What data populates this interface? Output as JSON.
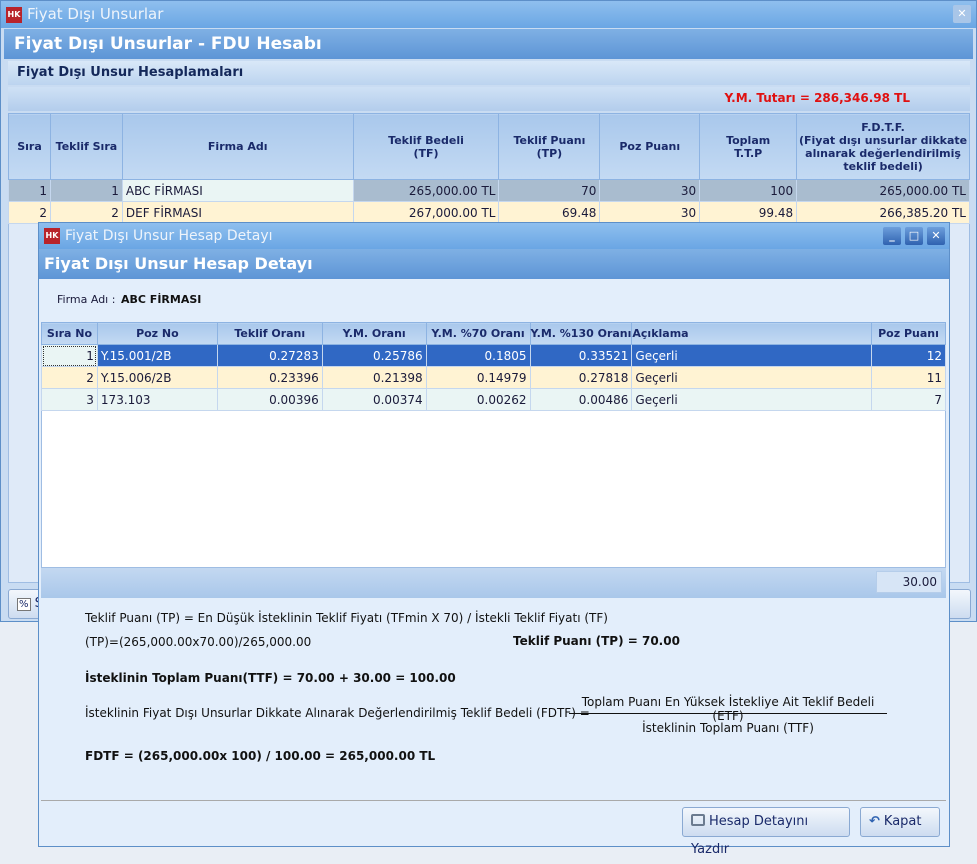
{
  "main_window": {
    "title": "Fiyat Dışı Unsurlar",
    "logo": "HK",
    "header": "Fiyat Dışı Unsurlar - FDU Hesabı",
    "panel_title": "Fiyat Dışı Unsur Hesaplamaları",
    "ym_tutari": "Y.M. Tutarı = 286,346.98 TL",
    "columns": [
      "Sıra",
      "Teklif Sıra",
      "Firma Adı",
      "Teklif Bedeli\n(TF)",
      "Teklif Puanı\n(TP)",
      "Poz Puanı",
      "Toplam\nT.T.P",
      "F.D.T.F.\n(Fiyat dışı unsurlar dikkate alınarak değerlendirilmiş teklif bedeli)"
    ],
    "rows": [
      [
        "1",
        "1",
        "ABC FİRMASI",
        "265,000.00 TL",
        "70",
        "30",
        "100",
        "265,000.00 TL"
      ],
      [
        "2",
        "2",
        "DEF FİRMASI",
        "267,000.00 TL",
        "69.48",
        "30",
        "99.48",
        "266,385.20 TL"
      ]
    ],
    "bottom_button_label": "S"
  },
  "detail_dialog": {
    "title": "Fiyat Dışı Unsur Hesap Detayı",
    "logo": "HK",
    "header": "Fiyat Dışı Unsur Hesap Detayı",
    "firma_label": "Firma Adı :",
    "firma_value": "ABC FİRMASI",
    "columns": [
      "Sıra No",
      "Poz No",
      "Teklif Oranı",
      "Y.M. Oranı",
      "Y.M. %70 Oranı",
      "Y.M. %130 Oranı",
      "Açıklama",
      "Poz Puanı"
    ],
    "rows": [
      [
        "1",
        "Y.15.001/2B",
        "0.27283",
        "0.25786",
        "0.1805",
        "0.33521",
        "Geçerli",
        "12"
      ],
      [
        "2",
        "Y.15.006/2B",
        "0.23396",
        "0.21398",
        "0.14979",
        "0.27818",
        "Geçerli",
        "11"
      ],
      [
        "3",
        "173.103",
        "0.00396",
        "0.00374",
        "0.00262",
        "0.00486",
        "Geçerli",
        "7"
      ]
    ],
    "total_poz_puani": "30.00",
    "formulas": {
      "tp_def": "Teklif Puanı (TP) = En Düşük İsteklinin Teklif Fiyatı (TFmin X  70) / İstekli Teklif Fiyatı (TF)",
      "tp_calc": "(TP)=(265,000.00x70.00)/265,000.00",
      "tp_result": "Teklif Puanı (TP) = 70.00",
      "ttf": "İsteklinin Toplam Puanı(TTF) = 70.00 + 30.00 = 100.00",
      "fdtf_def": "İsteklinin Fiyat Dışı Unsurlar Dikkate Alınarak Değerlendirilmiş Teklif Bedeli (FDTF) =",
      "fdtf_numerator": "Toplam Puanı En Yüksek İstekliye Ait Teklif Bedeli (ETF)",
      "fdtf_denominator": "İsteklinin Toplam Puanı (TTF)",
      "fdtf_result": "FDTF = (265,000.00x 100) / 100.00 = 265,000.00 TL"
    },
    "print_button": "Hesap Detayını Yazdır",
    "close_button": "Kapat"
  },
  "colors": {
    "selected_row": "#3068c4",
    "alt_row": "#fff3d3",
    "accent_red": "#e01010",
    "title_blue": "#6aa6e4"
  }
}
